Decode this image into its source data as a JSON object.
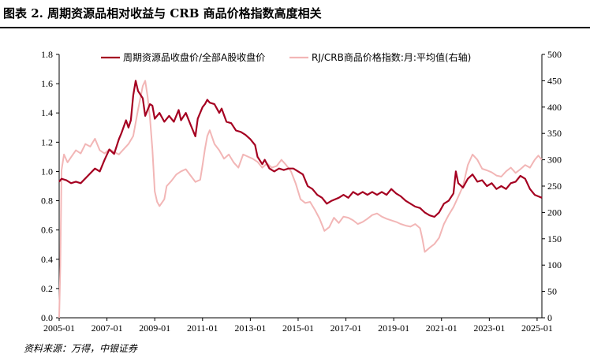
{
  "header": {
    "title": "图表 2. 周期资源品相对收益与 CRB 商品价格指数高度相关"
  },
  "footer": {
    "source": "资料来源：万得，中银证券"
  },
  "colors": {
    "series1": "#A50021",
    "series2": "#F2B6B6",
    "axis": "#000000"
  },
  "chart_data": {
    "type": "line",
    "title": "周期资源品相对收益与 CRB 商品价格指数高度相关",
    "x_range": [
      2005.0,
      2025.2
    ],
    "x_ticks": [
      "2005-01",
      "2007-01",
      "2009-01",
      "2011-01",
      "2013-01",
      "2015-01",
      "2017-01",
      "2019-01",
      "2021-01",
      "2023-01",
      "2025-01"
    ],
    "y_left": {
      "range": [
        0,
        1.8
      ],
      "ticks": [
        "0.0",
        "0.2",
        "0.4",
        "0.6",
        "0.8",
        "1.0",
        "1.2",
        "1.4",
        "1.6",
        "1.8"
      ]
    },
    "y_right": {
      "range": [
        0,
        500
      ],
      "ticks": [
        "0",
        "50",
        "100",
        "150",
        "200",
        "250",
        "300",
        "350",
        "400",
        "450",
        "500"
      ]
    },
    "legend_position": "top",
    "series": [
      {
        "name": "周期资源品收盘价/全部A股收盘价",
        "axis": "left",
        "points": [
          [
            2005.0,
            0.93
          ],
          [
            2005.1,
            0.95
          ],
          [
            2005.3,
            0.94
          ],
          [
            2005.5,
            0.92
          ],
          [
            2005.7,
            0.93
          ],
          [
            2005.9,
            0.92
          ],
          [
            2006.2,
            0.97
          ],
          [
            2006.5,
            1.02
          ],
          [
            2006.7,
            1.0
          ],
          [
            2006.9,
            1.08
          ],
          [
            2007.1,
            1.15
          ],
          [
            2007.3,
            1.12
          ],
          [
            2007.5,
            1.22
          ],
          [
            2007.6,
            1.26
          ],
          [
            2007.8,
            1.35
          ],
          [
            2007.9,
            1.3
          ],
          [
            2008.0,
            1.35
          ],
          [
            2008.1,
            1.52
          ],
          [
            2008.2,
            1.62
          ],
          [
            2008.3,
            1.55
          ],
          [
            2008.5,
            1.5
          ],
          [
            2008.6,
            1.38
          ],
          [
            2008.8,
            1.46
          ],
          [
            2008.9,
            1.45
          ],
          [
            2009.0,
            1.36
          ],
          [
            2009.2,
            1.4
          ],
          [
            2009.4,
            1.34
          ],
          [
            2009.6,
            1.38
          ],
          [
            2009.8,
            1.34
          ],
          [
            2010.0,
            1.42
          ],
          [
            2010.1,
            1.35
          ],
          [
            2010.3,
            1.4
          ],
          [
            2010.5,
            1.32
          ],
          [
            2010.7,
            1.24
          ],
          [
            2010.8,
            1.36
          ],
          [
            2011.0,
            1.44
          ],
          [
            2011.1,
            1.46
          ],
          [
            2011.2,
            1.49
          ],
          [
            2011.3,
            1.47
          ],
          [
            2011.5,
            1.46
          ],
          [
            2011.7,
            1.4
          ],
          [
            2011.8,
            1.43
          ],
          [
            2012.0,
            1.34
          ],
          [
            2012.2,
            1.33
          ],
          [
            2012.4,
            1.28
          ],
          [
            2012.6,
            1.27
          ],
          [
            2012.8,
            1.25
          ],
          [
            2013.0,
            1.22
          ],
          [
            2013.2,
            1.18
          ],
          [
            2013.3,
            1.1
          ],
          [
            2013.5,
            1.05
          ],
          [
            2013.6,
            1.08
          ],
          [
            2013.8,
            1.02
          ],
          [
            2014.0,
            1.0
          ],
          [
            2014.2,
            1.02
          ],
          [
            2014.4,
            1.01
          ],
          [
            2014.6,
            1.02
          ],
          [
            2014.8,
            1.02
          ],
          [
            2015.0,
            1.0
          ],
          [
            2015.2,
            0.98
          ],
          [
            2015.4,
            0.9
          ],
          [
            2015.6,
            0.88
          ],
          [
            2015.8,
            0.84
          ],
          [
            2016.0,
            0.82
          ],
          [
            2016.2,
            0.78
          ],
          [
            2016.4,
            0.8
          ],
          [
            2016.7,
            0.82
          ],
          [
            2016.9,
            0.84
          ],
          [
            2017.1,
            0.82
          ],
          [
            2017.3,
            0.86
          ],
          [
            2017.5,
            0.84
          ],
          [
            2017.7,
            0.86
          ],
          [
            2017.9,
            0.84
          ],
          [
            2018.1,
            0.86
          ],
          [
            2018.3,
            0.84
          ],
          [
            2018.5,
            0.86
          ],
          [
            2018.7,
            0.84
          ],
          [
            2018.9,
            0.88
          ],
          [
            2019.1,
            0.85
          ],
          [
            2019.3,
            0.83
          ],
          [
            2019.5,
            0.8
          ],
          [
            2019.7,
            0.78
          ],
          [
            2019.9,
            0.76
          ],
          [
            2020.1,
            0.75
          ],
          [
            2020.3,
            0.72
          ],
          [
            2020.5,
            0.7
          ],
          [
            2020.7,
            0.69
          ],
          [
            2020.9,
            0.72
          ],
          [
            2021.1,
            0.78
          ],
          [
            2021.3,
            0.8
          ],
          [
            2021.5,
            0.85
          ],
          [
            2021.6,
            1.0
          ],
          [
            2021.7,
            0.92
          ],
          [
            2021.9,
            0.89
          ],
          [
            2022.1,
            0.95
          ],
          [
            2022.3,
            0.98
          ],
          [
            2022.5,
            0.93
          ],
          [
            2022.7,
            0.94
          ],
          [
            2022.9,
            0.9
          ],
          [
            2023.1,
            0.92
          ],
          [
            2023.3,
            0.88
          ],
          [
            2023.5,
            0.9
          ],
          [
            2023.7,
            0.88
          ],
          [
            2023.9,
            0.92
          ],
          [
            2024.1,
            0.93
          ],
          [
            2024.3,
            0.97
          ],
          [
            2024.5,
            0.95
          ],
          [
            2024.7,
            0.88
          ],
          [
            2024.9,
            0.84
          ],
          [
            2025.05,
            0.83
          ],
          [
            2025.2,
            0.82
          ]
        ]
      },
      {
        "name": "RJ/CRB商品价格指数:月:平均值(右轴)",
        "axis": "right",
        "points": [
          [
            2005.0,
            0
          ],
          [
            2005.05,
            100
          ],
          [
            2005.1,
            280
          ],
          [
            2005.2,
            310
          ],
          [
            2005.35,
            295
          ],
          [
            2005.5,
            305
          ],
          [
            2005.7,
            318
          ],
          [
            2005.9,
            312
          ],
          [
            2006.1,
            330
          ],
          [
            2006.3,
            325
          ],
          [
            2006.5,
            340
          ],
          [
            2006.7,
            318
          ],
          [
            2006.9,
            312
          ],
          [
            2007.1,
            320
          ],
          [
            2007.3,
            315
          ],
          [
            2007.5,
            310
          ],
          [
            2007.7,
            320
          ],
          [
            2007.9,
            330
          ],
          [
            2008.1,
            345
          ],
          [
            2008.3,
            395
          ],
          [
            2008.5,
            440
          ],
          [
            2008.6,
            450
          ],
          [
            2008.7,
            420
          ],
          [
            2008.8,
            380
          ],
          [
            2008.9,
            320
          ],
          [
            2009.0,
            240
          ],
          [
            2009.1,
            220
          ],
          [
            2009.2,
            212
          ],
          [
            2009.4,
            225
          ],
          [
            2009.5,
            250
          ],
          [
            2009.7,
            260
          ],
          [
            2009.9,
            272
          ],
          [
            2010.1,
            278
          ],
          [
            2010.3,
            282
          ],
          [
            2010.5,
            270
          ],
          [
            2010.7,
            258
          ],
          [
            2010.9,
            262
          ],
          [
            2011.0,
            290
          ],
          [
            2011.1,
            320
          ],
          [
            2011.2,
            345
          ],
          [
            2011.3,
            356
          ],
          [
            2011.5,
            330
          ],
          [
            2011.7,
            318
          ],
          [
            2011.9,
            302
          ],
          [
            2012.1,
            310
          ],
          [
            2012.3,
            295
          ],
          [
            2012.5,
            285
          ],
          [
            2012.7,
            310
          ],
          [
            2012.9,
            306
          ],
          [
            2013.1,
            302
          ],
          [
            2013.3,
            296
          ],
          [
            2013.5,
            285
          ],
          [
            2013.7,
            293
          ],
          [
            2013.9,
            285
          ],
          [
            2014.1,
            288
          ],
          [
            2014.3,
            300
          ],
          [
            2014.5,
            290
          ],
          [
            2014.7,
            278
          ],
          [
            2014.9,
            255
          ],
          [
            2015.1,
            225
          ],
          [
            2015.3,
            218
          ],
          [
            2015.5,
            220
          ],
          [
            2015.7,
            205
          ],
          [
            2015.9,
            188
          ],
          [
            2016.1,
            165
          ],
          [
            2016.3,
            172
          ],
          [
            2016.5,
            190
          ],
          [
            2016.7,
            180
          ],
          [
            2016.9,
            192
          ],
          [
            2017.1,
            190
          ],
          [
            2017.3,
            185
          ],
          [
            2017.5,
            178
          ],
          [
            2017.7,
            182
          ],
          [
            2017.9,
            188
          ],
          [
            2018.1,
            195
          ],
          [
            2018.3,
            198
          ],
          [
            2018.5,
            192
          ],
          [
            2018.7,
            188
          ],
          [
            2018.9,
            185
          ],
          [
            2019.1,
            182
          ],
          [
            2019.3,
            178
          ],
          [
            2019.5,
            175
          ],
          [
            2019.7,
            173
          ],
          [
            2019.9,
            178
          ],
          [
            2020.1,
            170
          ],
          [
            2020.2,
            150
          ],
          [
            2020.3,
            125
          ],
          [
            2020.5,
            133
          ],
          [
            2020.7,
            140
          ],
          [
            2020.9,
            152
          ],
          [
            2021.1,
            178
          ],
          [
            2021.3,
            195
          ],
          [
            2021.5,
            210
          ],
          [
            2021.7,
            230
          ],
          [
            2021.9,
            250
          ],
          [
            2022.1,
            290
          ],
          [
            2022.3,
            310
          ],
          [
            2022.5,
            300
          ],
          [
            2022.7,
            283
          ],
          [
            2022.9,
            280
          ],
          [
            2023.1,
            276
          ],
          [
            2023.3,
            270
          ],
          [
            2023.5,
            268
          ],
          [
            2023.7,
            278
          ],
          [
            2023.9,
            285
          ],
          [
            2024.1,
            275
          ],
          [
            2024.3,
            282
          ],
          [
            2024.5,
            290
          ],
          [
            2024.7,
            285
          ],
          [
            2024.9,
            300
          ],
          [
            2025.05,
            308
          ],
          [
            2025.2,
            300
          ]
        ]
      }
    ]
  }
}
